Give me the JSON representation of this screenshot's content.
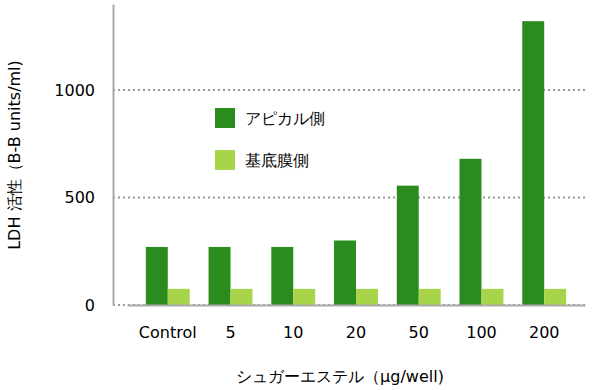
{
  "chart_data": {
    "type": "bar",
    "x_label": "シュガーエステル（μg/well)",
    "y_label": "LDH 活性（B-B units/ml)",
    "categories": [
      "Control",
      "5",
      "10",
      "20",
      "50",
      "100",
      "200"
    ],
    "series": [
      {
        "name": "アピカル側",
        "color": "#2a8c1e",
        "values": [
          270,
          270,
          270,
          300,
          555,
          680,
          1320
        ]
      },
      {
        "name": "基底膜側",
        "color": "#a8d44a",
        "values": [
          75,
          75,
          75,
          75,
          75,
          75,
          75
        ]
      }
    ],
    "ylim": [
      0,
      1400
    ],
    "yticks": [
      0,
      500,
      1000
    ],
    "grid": true,
    "legend": "upper left"
  }
}
